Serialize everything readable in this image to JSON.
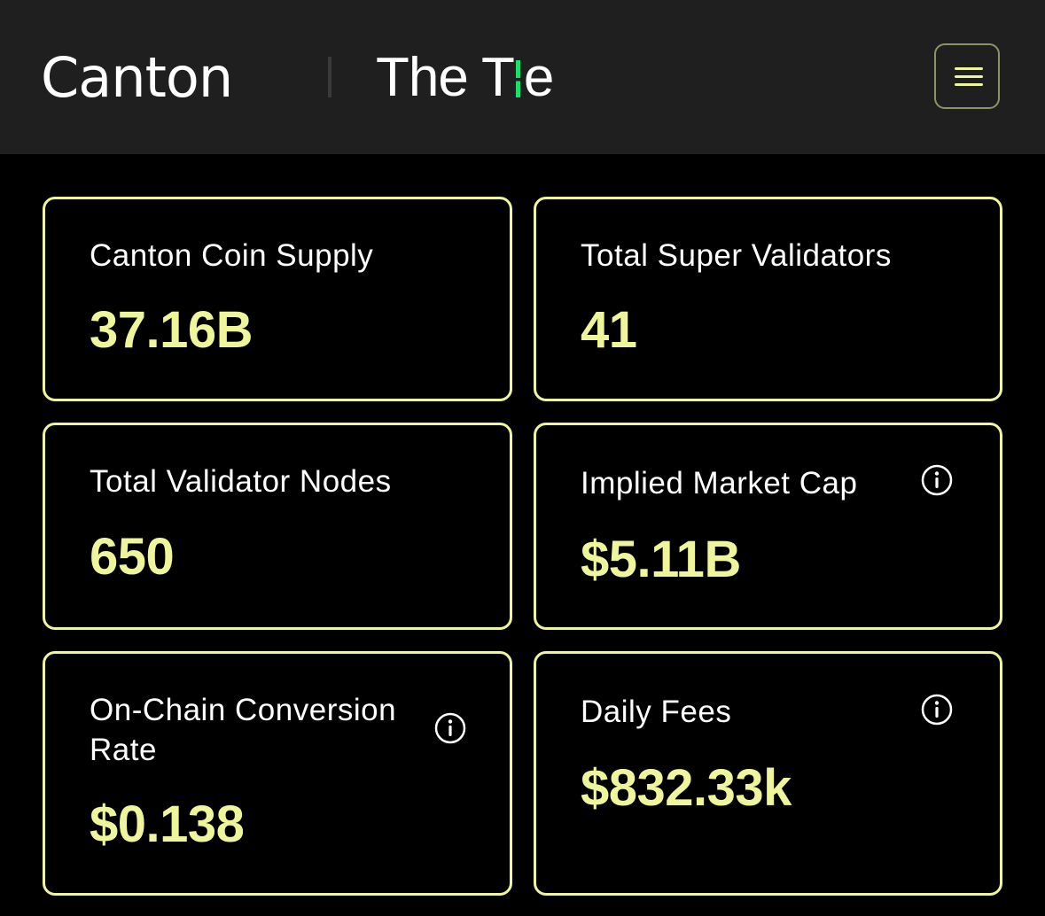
{
  "header": {
    "brand_primary": "Canton",
    "brand_secondary_prefix": "The T",
    "brand_secondary_suffix": "e",
    "menu_icon": "hamburger-menu-icon"
  },
  "colors": {
    "accent": "#eef59a",
    "header_bg": "#1f1f1f",
    "page_bg": "#000000",
    "logo_tick": "#18e06a"
  },
  "cards": [
    {
      "label": "Canton Coin Supply",
      "value": "37.16B",
      "info": false
    },
    {
      "label": "Total Super Validators",
      "value": "41",
      "info": false
    },
    {
      "label": "Total Validator Nodes",
      "value": "650",
      "info": false
    },
    {
      "label": "Implied Market Cap",
      "value": "$5.11B",
      "info": true
    },
    {
      "label_line1": "On-Chain Conversion",
      "label_line2": "Rate",
      "value": "$0.138",
      "info": true
    },
    {
      "label": "Daily Fees",
      "value": "$832.33k",
      "info": true
    }
  ]
}
